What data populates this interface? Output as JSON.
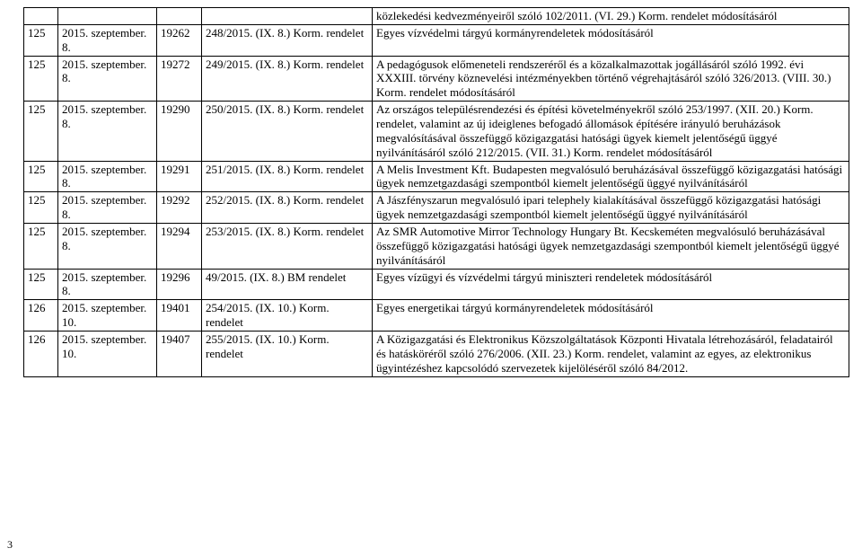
{
  "pageNumber": "3",
  "table": {
    "columns": 5,
    "rows": [
      {
        "c1": "",
        "c2": "",
        "c3": "",
        "c4": "",
        "c5": "közlekedési kedvezményeiről szóló 102/2011. (VI. 29.) Korm. rendelet módosításáról"
      },
      {
        "c1": "125",
        "c2": "2015. szeptember.\n8.",
        "c3": "19262",
        "c4": "248/2015. (IX. 8.) Korm. rendelet",
        "c5": "Egyes vízvédelmi tárgyú kormányrendeletek módosításáról"
      },
      {
        "c1": "125",
        "c2": "2015. szeptember.\n8.",
        "c3": "19272",
        "c4": "249/2015. (IX. 8.) Korm. rendelet",
        "c5": "A pedagógusok előmeneteli rendszeréről és a közalkalmazottak jogállásáról szóló 1992. évi XXXIII. törvény köznevelési intézményekben történő végrehajtásáról szóló 326/2013. (VIII. 30.) Korm. rendelet módosításáról"
      },
      {
        "c1": "125",
        "c2": "2015. szeptember.\n8.",
        "c3": "19290",
        "c4": "250/2015. (IX. 8.) Korm. rendelet",
        "c5": "Az országos településrendezési és építési követelményekről szóló 253/1997. (XII. 20.) Korm. rendelet, valamint az új ideiglenes befogadó állomások építésére irányuló beruházások megvalósításával összefüggő közigazgatási hatósági ügyek kiemelt jelentőségű üggyé nyilvánításáról szóló 212/2015. (VII. 31.) Korm. rendelet módosításáról"
      },
      {
        "c1": "125",
        "c2": "2015. szeptember.\n8.",
        "c3": "19291",
        "c4": "251/2015. (IX. 8.) Korm. rendelet",
        "c5": "A Melis Investment Kft. Budapesten megvalósuló beruházásával összefüggő közigazgatási hatósági ügyek nemzetgazdasági szempontból kiemelt jelentőségű üggyé nyilvánításáról"
      },
      {
        "c1": "125",
        "c2": "2015. szeptember.\n8.",
        "c3": "19292",
        "c4": "252/2015. (IX. 8.) Korm. rendelet",
        "c5": "A Jászfényszarun megvalósuló ipari telephely kialakításával összefüggő közigazgatási hatósági ügyek nemzetgazdasági szempontból kiemelt jelentőségű üggyé nyilvánításáról"
      },
      {
        "c1": "125",
        "c2": "2015. szeptember.\n8.",
        "c3": "19294",
        "c4": "253/2015. (IX. 8.) Korm. rendelet",
        "c5": "Az SMR Automotive Mirror Technology Hungary Bt. Kecskeméten megvalósuló beruházásával összefüggő közigazgatási hatósági ügyek nemzetgazdasági szempontból kiemelt jelentőségű üggyé nyilvánításáról"
      },
      {
        "c1": "125",
        "c2": "2015. szeptember.\n8.",
        "c3": "19296",
        "c4": "49/2015. (IX. 8.) BM rendelet",
        "c5": "Egyes vízügyi és vízvédelmi tárgyú miniszteri rendeletek módosításáról"
      },
      {
        "c1": "126",
        "c2": "2015. szeptember.\n10.",
        "c3": "19401",
        "c4": "254/2015. (IX. 10.) Korm. rendelet",
        "c5": "Egyes energetikai tárgyú kormányrendeletek módosításáról"
      },
      {
        "c1": "126",
        "c2": "2015. szeptember.\n10.",
        "c3": "19407",
        "c4": "255/2015. (IX. 10.) Korm. rendelet",
        "c5": "A Közigazgatási és Elektronikus Közszolgáltatások Központi Hivatala létrehozásáról, feladatairól és hatásköréről szóló 276/2006. (XII. 23.) Korm. rendelet, valamint az egyes, az elektronikus ügyintézéshez kapcsolódó szervezetek kijelöléséről szóló 84/2012."
      }
    ]
  }
}
